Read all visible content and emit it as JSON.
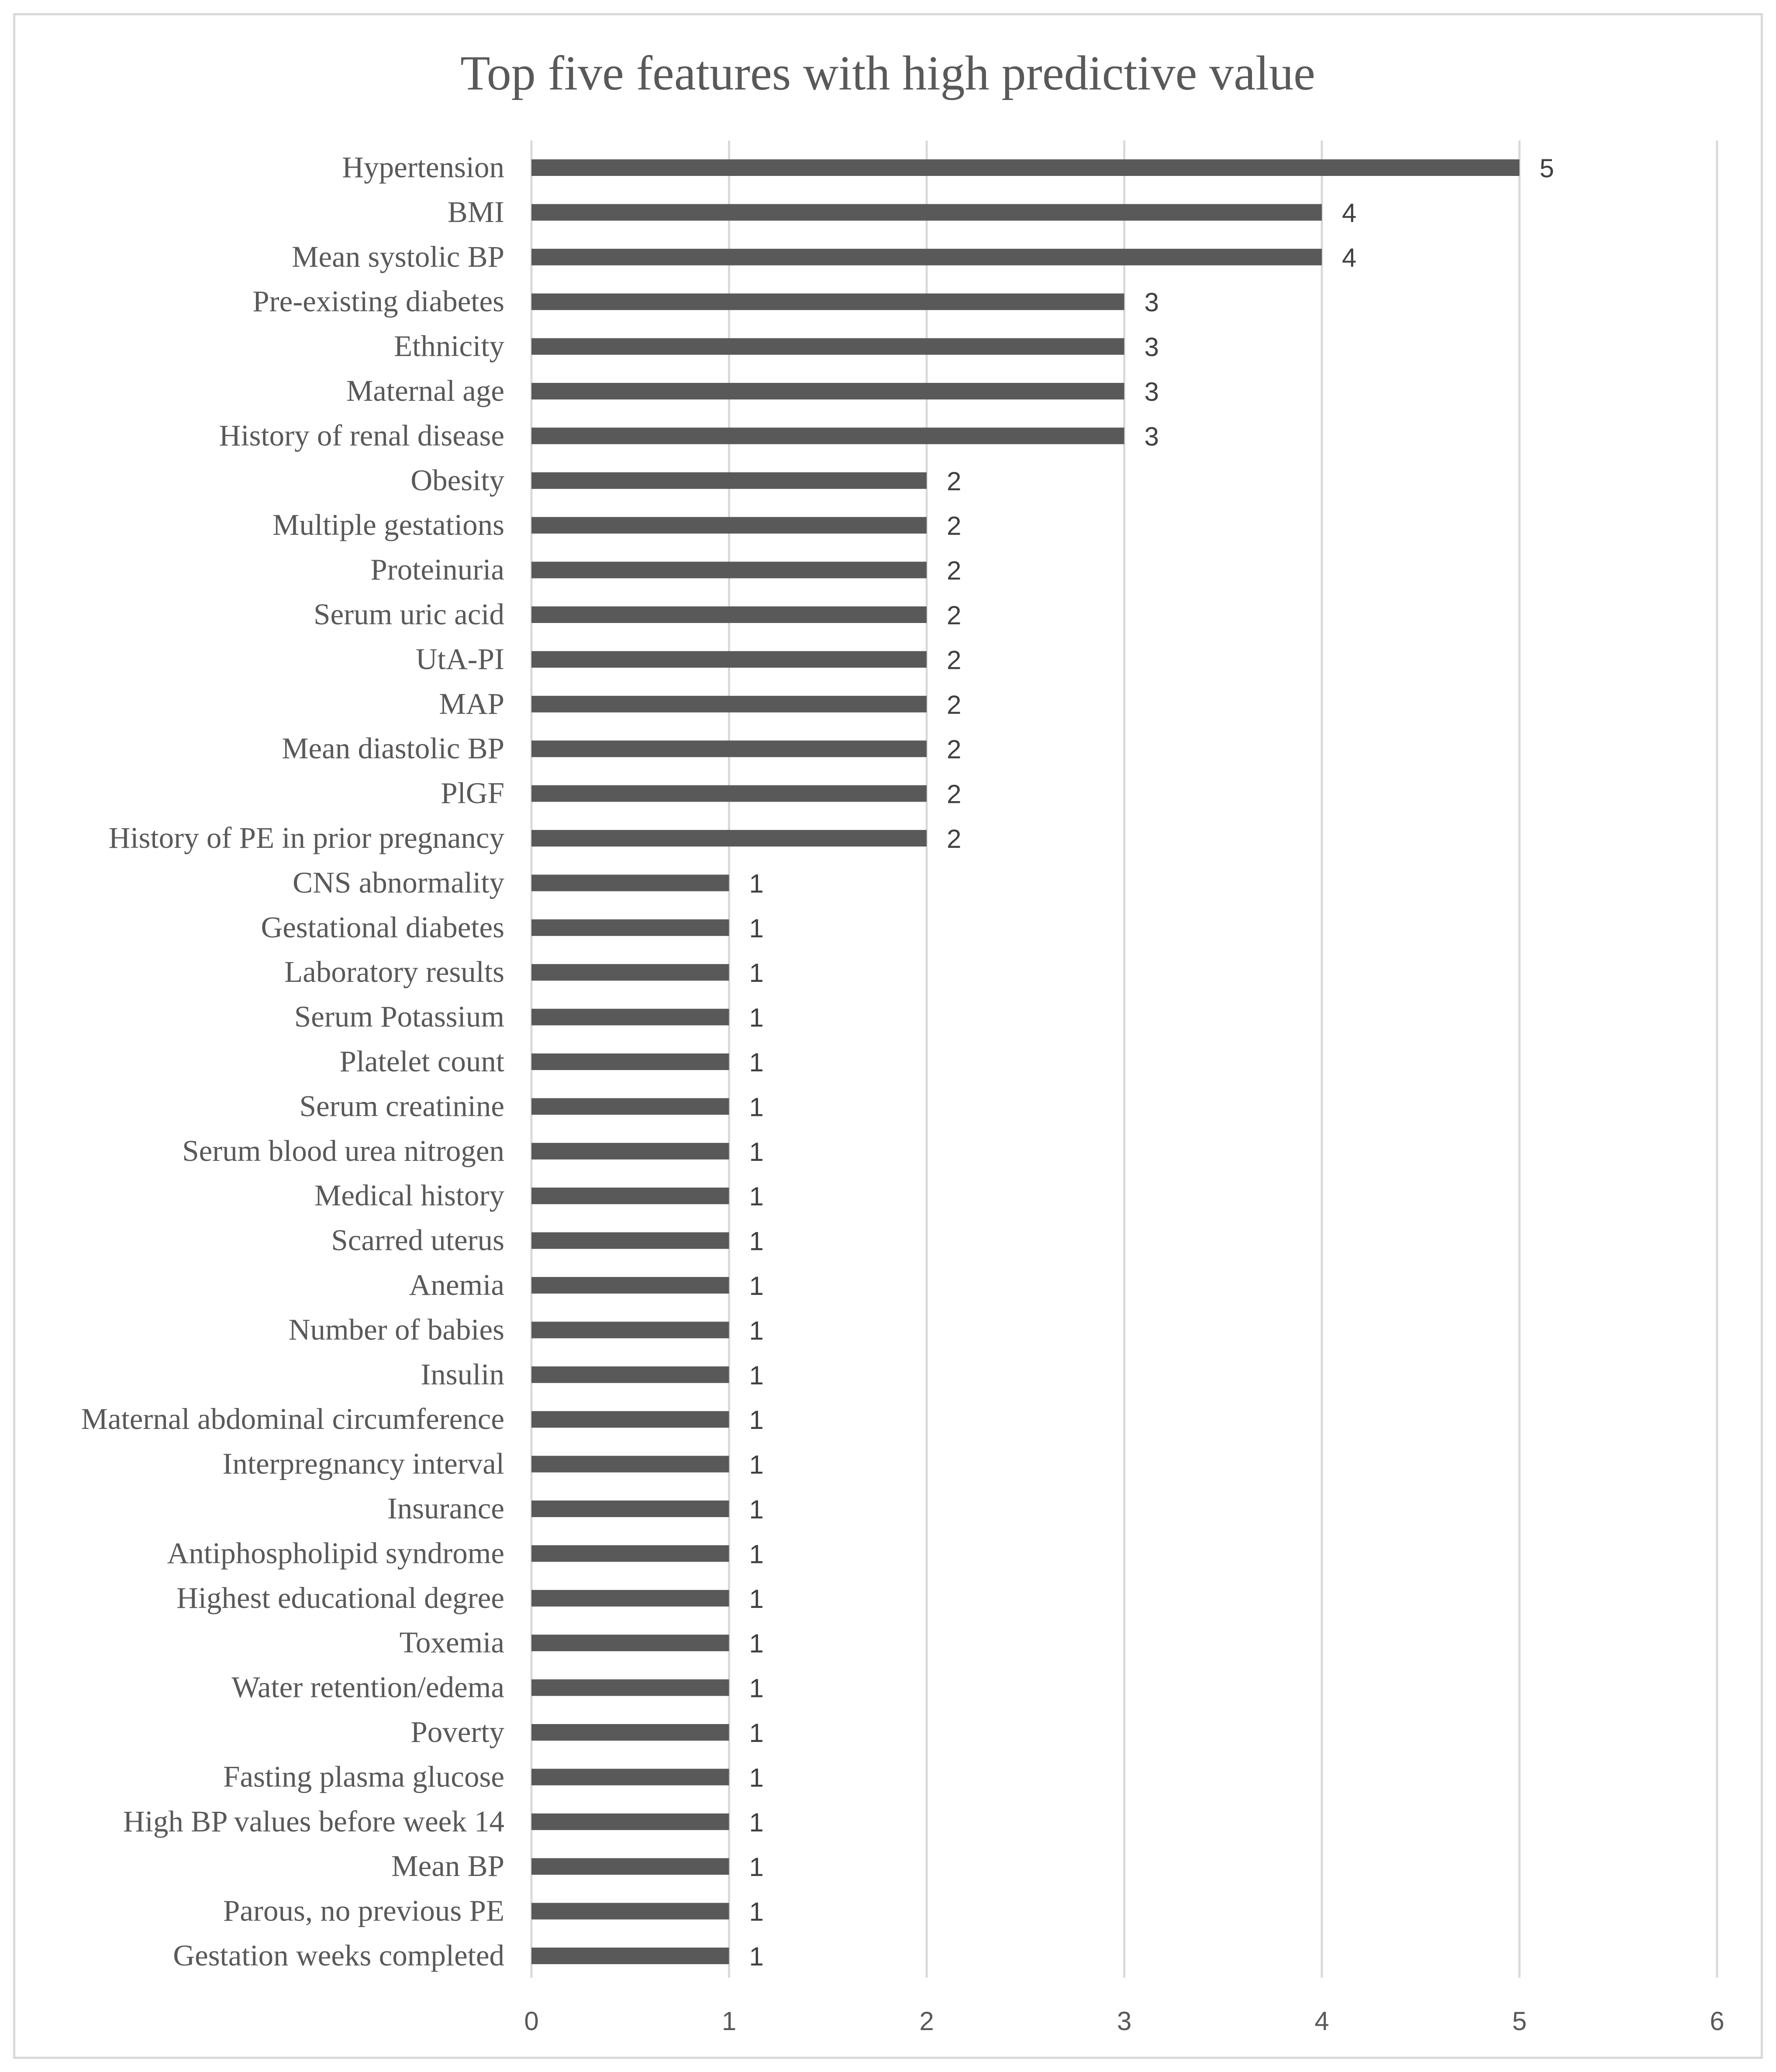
{
  "chart_data": {
    "type": "bar",
    "orientation": "horizontal",
    "title": "Top five features with high predictive value",
    "xlabel": "",
    "ylabel": "",
    "xlim": [
      0,
      6
    ],
    "ticks": [
      "0",
      "1",
      "2",
      "3",
      "4",
      "5",
      "6"
    ],
    "grid": true,
    "legend": "none",
    "bar_color": "#595959",
    "grid_color": "#d9d9d9",
    "text_color": "#595959",
    "categories": [
      "Hypertension",
      "BMI",
      "Mean systolic BP",
      "Pre-existing diabetes",
      "Ethnicity",
      "Maternal age",
      "History of renal disease",
      "Obesity",
      "Multiple gestations",
      "Proteinuria",
      "Serum uric acid",
      "UtA-PI",
      "MAP",
      "Mean diastolic BP",
      "PlGF",
      "History of PE in prior pregnancy",
      "CNS abnormality",
      "Gestational diabetes",
      "Laboratory results",
      "Serum Potassium",
      "Platelet count",
      "Serum creatinine",
      "Serum blood urea nitrogen",
      "Medical history",
      "Scarred uterus",
      "Anemia",
      "Number of babies",
      "Insulin",
      "Maternal abdominal circumference",
      "Interpregnancy interval",
      "Insurance",
      "Antiphospholipid syndrome",
      "Highest educational degree",
      "Toxemia",
      "Water retention/edema",
      "Poverty",
      "Fasting plasma glucose",
      "High BP values before week 14",
      "Mean BP",
      "Parous, no previous PE",
      "Gestation weeks completed"
    ],
    "values": [
      5,
      4,
      4,
      3,
      3,
      3,
      3,
      2,
      2,
      2,
      2,
      2,
      2,
      2,
      2,
      2,
      1,
      1,
      1,
      1,
      1,
      1,
      1,
      1,
      1,
      1,
      1,
      1,
      1,
      1,
      1,
      1,
      1,
      1,
      1,
      1,
      1,
      1,
      1,
      1,
      1
    ]
  }
}
